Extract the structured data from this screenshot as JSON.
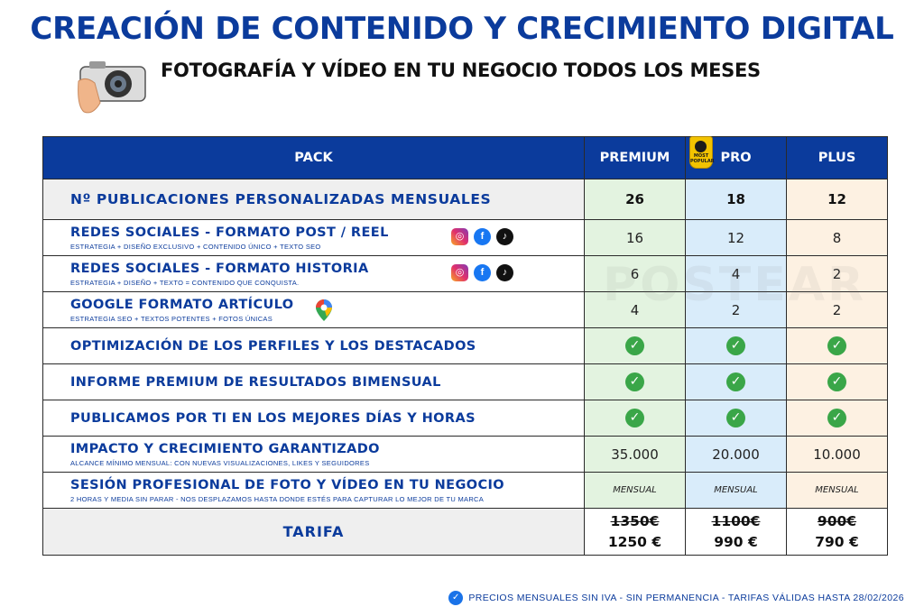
{
  "header": {
    "title": "CREACIÓN DE CONTENIDO Y CRECIMIENTO DIGITAL",
    "subtitle": "FOTOGRAFÍA Y VÍDEO EN TU NEGOCIO TODOS LOS MESES",
    "icon": "camera-in-hand-icon"
  },
  "table": {
    "columns": [
      "PACK",
      "PREMIUM",
      "PRO",
      "PLUS"
    ],
    "badge_lines": [
      "MOST",
      "POPULAR"
    ],
    "rows": [
      {
        "main": "Nº PUBLICACIONES PERSONALIZADAS MENSUALES",
        "sub": "",
        "values": [
          "26",
          "18",
          "12"
        ]
      },
      {
        "main": "REDES SOCIALES - FORMATO POST / REEL",
        "sub": "ESTRATEGIA + DISEÑO EXCLUSIVO + CONTENIDO ÚNICO + TEXTO SEO",
        "values": [
          "16",
          "12",
          "8"
        ],
        "icons": [
          "instagram-icon",
          "facebook-icon",
          "tiktok-icon"
        ]
      },
      {
        "main": "REDES SOCIALES - FORMATO HISTORIA",
        "sub": "ESTRATEGIA + DISEÑO + TEXTO = CONTENIDO QUE CONQUISTA.",
        "values": [
          "6",
          "4",
          "2"
        ],
        "icons": [
          "instagram-icon",
          "facebook-icon",
          "tiktok-icon"
        ]
      },
      {
        "main": "GOOGLE FORMATO ARTÍCULO",
        "sub": "ESTRATEGIA SEO + TEXTOS POTENTES + FOTOS ÚNICAS",
        "values": [
          "4",
          "2",
          "2"
        ],
        "icons": [
          "google-maps-icon"
        ]
      },
      {
        "main": "OPTIMIZACIÓN DE LOS PERFILES Y LOS DESTACADOS",
        "sub": "",
        "values": [
          "✓",
          "✓",
          "✓"
        ]
      },
      {
        "main": "INFORME PREMIUM DE RESULTADOS BIMENSUAL",
        "sub": "",
        "values": [
          "✓",
          "✓",
          "✓"
        ]
      },
      {
        "main": "PUBLICAMOS POR TI EN LOS MEJORES DÍAS Y HORAS",
        "sub": "",
        "values": [
          "✓",
          "✓",
          "✓"
        ]
      },
      {
        "main": "IMPACTO Y CRECIMIENTO GARANTIZADO",
        "sub": "ALCANCE MÍNIMO MENSUAL: CON NUEVAS VISUALIZACIONES, LIKES Y SEGUIDORES",
        "values": [
          "35.000",
          "20.000",
          "10.000"
        ]
      },
      {
        "main": "SESIÓN PROFESIONAL DE FOTO Y VÍDEO EN TU NEGOCIO",
        "sub": "2 HORAS Y MEDIA SIN PARAR - NOS DESPLAZAMOS HASTA DONDE ESTÉS PARA CAPTURAR LO MEJOR DE TU MARCA",
        "values": [
          "MENSUAL",
          "MENSUAL",
          "MENSUAL"
        ]
      }
    ],
    "tarifa": {
      "label": "TARIFA",
      "old": [
        "1350€",
        "1100€",
        "900€"
      ],
      "new": [
        "1250 €",
        "990 €",
        "790 €"
      ]
    }
  },
  "watermark": "POSTEAR",
  "footer": "PRECIOS MENSUALES SIN IVA - SIN PERMANENCIA  - TARIFAS VÁLIDAS HASTA 28/02/2026",
  "colors": {
    "brand": "#0b3b9c",
    "premium": "#e3f3e0",
    "pro": "#d9ecfa",
    "plus": "#fdf1e2",
    "check": "#3aa648"
  }
}
